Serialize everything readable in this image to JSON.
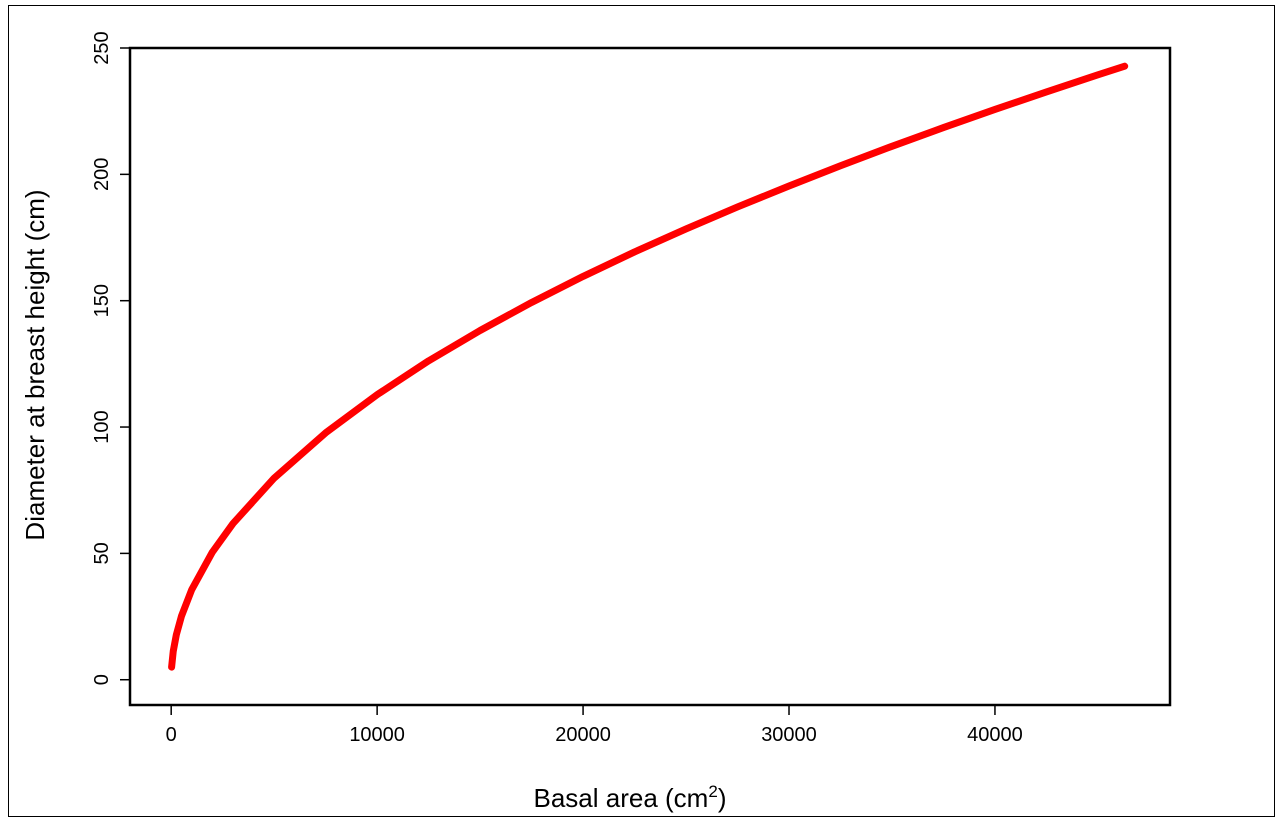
{
  "chart_data": {
    "type": "line",
    "title": "",
    "xlabel": "Basal area (cm",
    "xlabel_superscript": "2",
    "xlabel_suffix": ")",
    "ylabel": "Diameter at breast height (cm)",
    "xlim": [
      -2000,
      48500
    ],
    "ylim": [
      -10,
      250
    ],
    "xticks": [
      0,
      10000,
      20000,
      30000,
      40000
    ],
    "xtick_labels": [
      "0",
      "10000",
      "20000",
      "30000",
      "40000"
    ],
    "yticks": [
      0,
      50,
      100,
      150,
      200,
      250
    ],
    "ytick_labels": [
      "0",
      "50",
      "100",
      "150",
      "200",
      "250"
    ],
    "grid": false,
    "series": [
      {
        "color": "#ff0000",
        "x": [
          20,
          100,
          250,
          500,
          1000,
          2000,
          3000,
          5000,
          7500,
          10000,
          12500,
          15000,
          17500,
          20000,
          22500,
          25000,
          27500,
          30000,
          32500,
          35000,
          37500,
          40000,
          42500,
          45000,
          46300
        ],
        "y": [
          5.0,
          11.3,
          17.8,
          25.2,
          35.7,
          50.5,
          61.8,
          79.8,
          97.7,
          112.8,
          126.2,
          138.2,
          149.3,
          159.6,
          169.3,
          178.4,
          187.1,
          195.4,
          203.4,
          211.1,
          218.5,
          225.7,
          232.6,
          239.4,
          242.8
        ]
      }
    ]
  }
}
